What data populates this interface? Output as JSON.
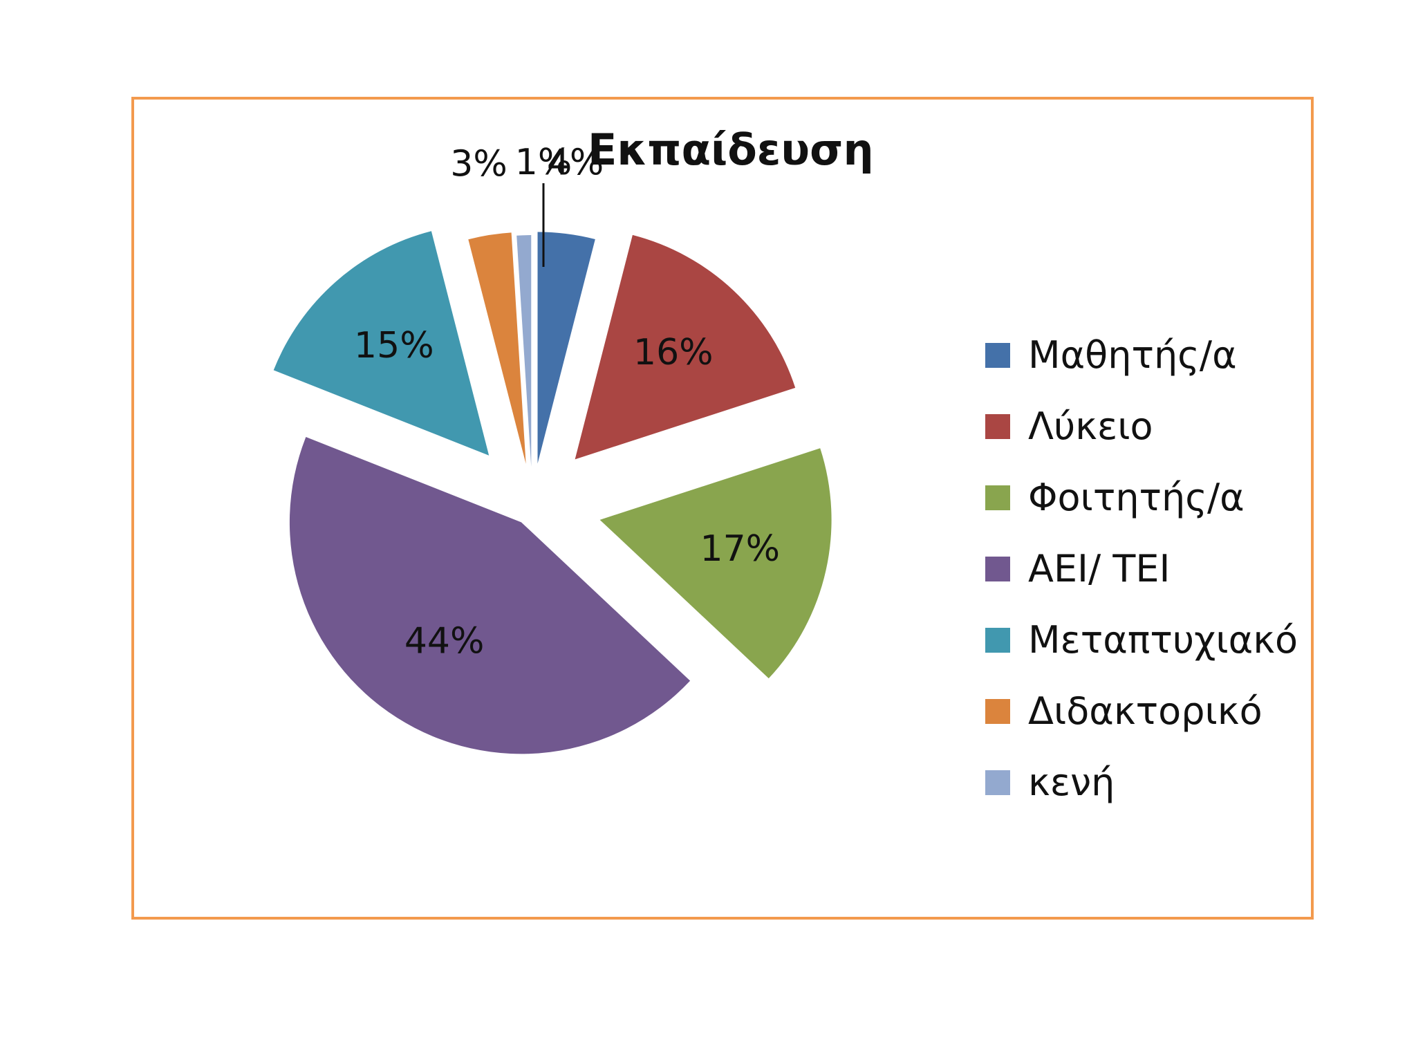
{
  "chart_data": {
    "type": "pie",
    "title": "Εκπαίδευση",
    "legend_position": "right",
    "slices": [
      {
        "name": "Μαθητής/α",
        "value": 4,
        "label": "4%",
        "color": "#4471a9"
      },
      {
        "name": "Λύκειο",
        "value": 16,
        "label": "16%",
        "color": "#aa4643"
      },
      {
        "name": "Φοιτητής/α",
        "value": 17,
        "label": "17%",
        "color": "#89a54e"
      },
      {
        "name": "ΑΕΙ/ ΤΕΙ",
        "value": 44,
        "label": "44%",
        "color": "#71588f"
      },
      {
        "name": "Μεταπτυχιακό",
        "value": 15,
        "label": "15%",
        "color": "#4198af"
      },
      {
        "name": "Διδακτορικό",
        "value": 3,
        "label": "3%",
        "color": "#db843d"
      },
      {
        "name": "κενή",
        "value": 1,
        "label": "1%",
        "color": "#93a9cf"
      }
    ]
  }
}
